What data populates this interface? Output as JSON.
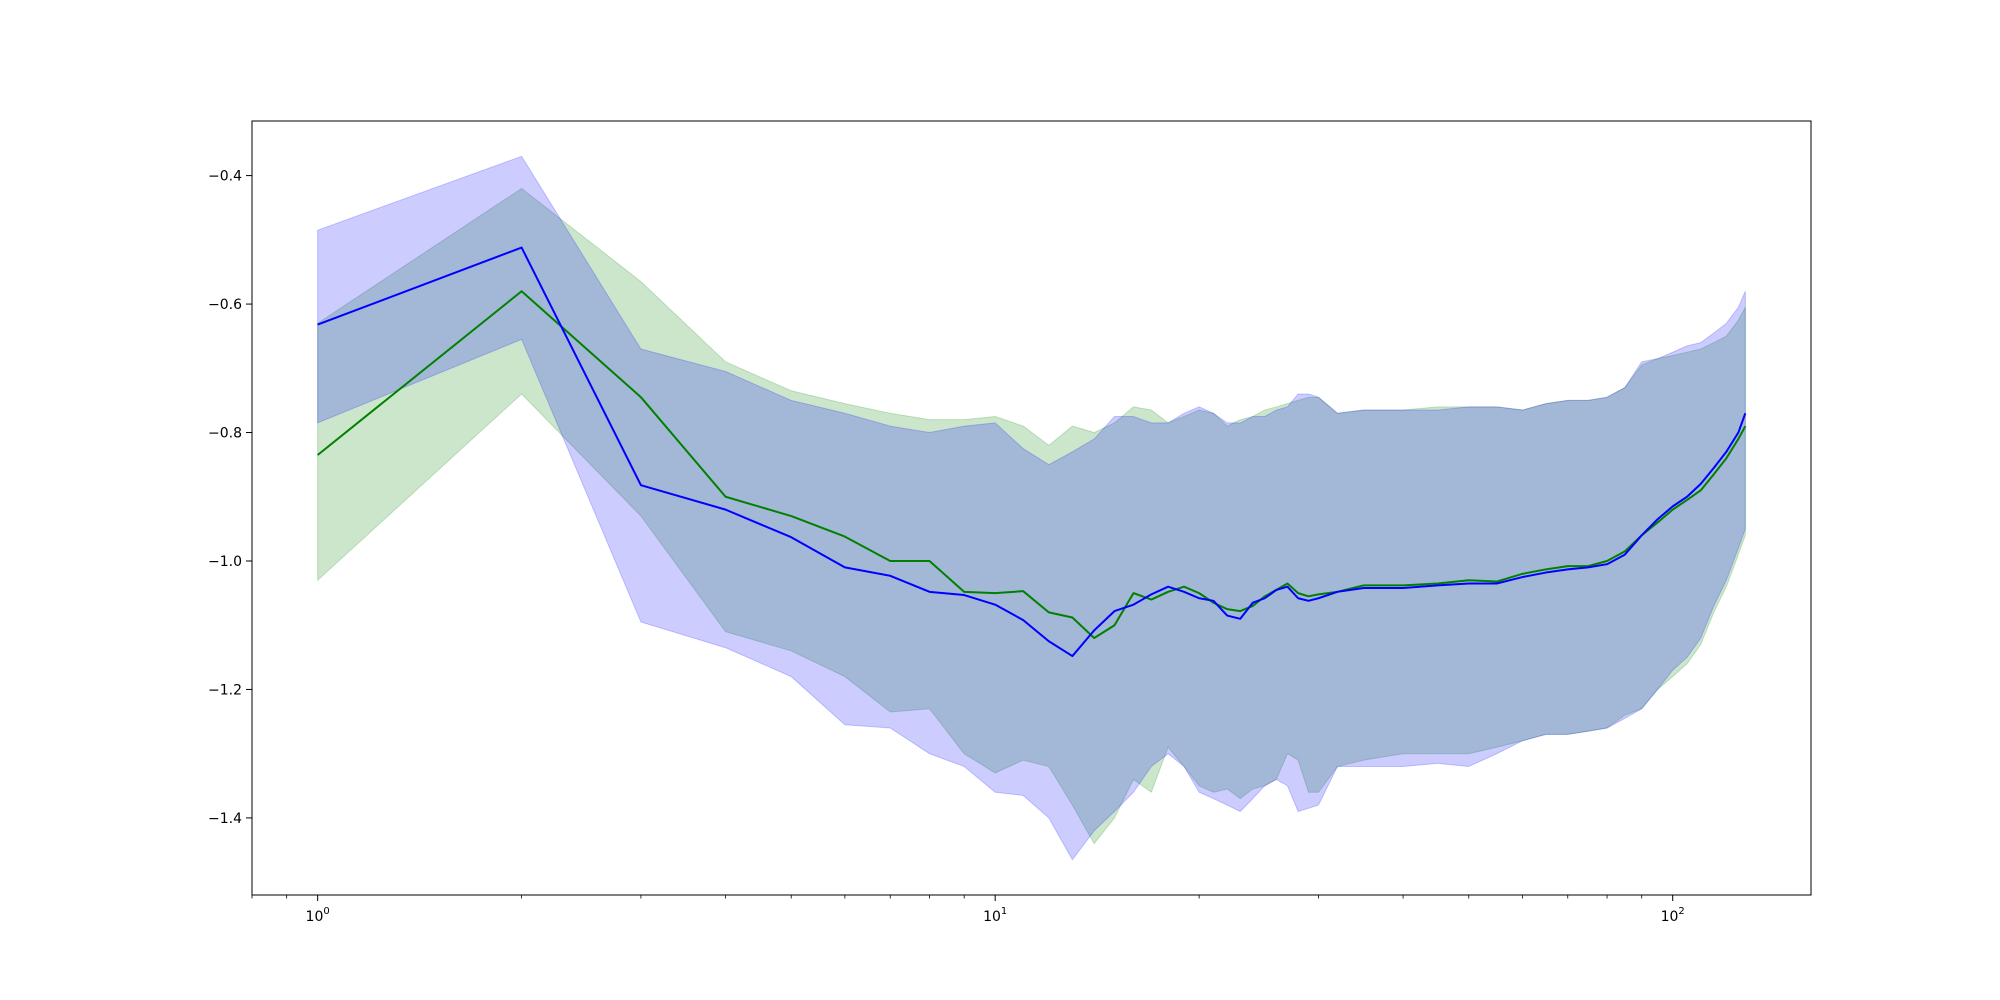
{
  "chart_data": {
    "type": "line",
    "title": "",
    "xlabel": "",
    "ylabel": "",
    "x_scale": "log",
    "xlim": [
      0.8,
      160
    ],
    "ylim": [
      -1.52,
      -0.315
    ],
    "grid": false,
    "legend": "none",
    "x_ticks": [
      {
        "value": 1,
        "base": "10",
        "exp": "0"
      },
      {
        "value": 10,
        "base": "10",
        "exp": "1"
      },
      {
        "value": 100,
        "base": "10",
        "exp": "2"
      }
    ],
    "y_ticks": [
      {
        "value": -0.4,
        "label": "−0.4"
      },
      {
        "value": -0.6,
        "label": "−0.6"
      },
      {
        "value": -0.8,
        "label": "−0.8"
      },
      {
        "value": -1.0,
        "label": "−1.0"
      },
      {
        "value": -1.2,
        "label": "−1.2"
      },
      {
        "value": -1.4,
        "label": "−1.4"
      }
    ],
    "series": [
      {
        "color": "#008000",
        "band_color": "#008000",
        "x": [
          1,
          2,
          3,
          4,
          5,
          6,
          7,
          8,
          9,
          10,
          11,
          12,
          13,
          14,
          15,
          16,
          17,
          18,
          19,
          20,
          21,
          22,
          23,
          24,
          25,
          26,
          27,
          28,
          29,
          30,
          32,
          35,
          40,
          45,
          50,
          55,
          60,
          65,
          70,
          75,
          80,
          85,
          90,
          95,
          100,
          105,
          110,
          115,
          120,
          125,
          128
        ],
        "y": [
          -0.835,
          -0.58,
          -0.745,
          -0.9,
          -0.93,
          -0.962,
          -1.0,
          -1.0,
          -1.048,
          -1.05,
          -1.047,
          -1.08,
          -1.088,
          -1.12,
          -1.1,
          -1.05,
          -1.06,
          -1.048,
          -1.04,
          -1.05,
          -1.065,
          -1.075,
          -1.078,
          -1.07,
          -1.055,
          -1.045,
          -1.035,
          -1.05,
          -1.055,
          -1.052,
          -1.048,
          -1.038,
          -1.038,
          -1.035,
          -1.03,
          -1.032,
          -1.02,
          -1.013,
          -1.008,
          -1.008,
          -1.0,
          -0.985,
          -0.96,
          -0.94,
          -0.92,
          -0.905,
          -0.89,
          -0.865,
          -0.84,
          -0.81,
          -0.79
        ],
        "upper": [
          -0.63,
          -0.42,
          -0.565,
          -0.69,
          -0.735,
          -0.755,
          -0.77,
          -0.78,
          -0.78,
          -0.775,
          -0.79,
          -0.82,
          -0.79,
          -0.8,
          -0.785,
          -0.76,
          -0.765,
          -0.785,
          -0.775,
          -0.765,
          -0.77,
          -0.79,
          -0.78,
          -0.775,
          -0.765,
          -0.76,
          -0.755,
          -0.75,
          -0.745,
          -0.745,
          -0.77,
          -0.765,
          -0.765,
          -0.76,
          -0.76,
          -0.76,
          -0.765,
          -0.755,
          -0.75,
          -0.75,
          -0.745,
          -0.73,
          -0.695,
          -0.685,
          -0.68,
          -0.675,
          -0.67,
          -0.66,
          -0.65,
          -0.625,
          -0.605
        ],
        "lower": [
          -1.03,
          -0.74,
          -0.93,
          -1.11,
          -1.14,
          -1.18,
          -1.235,
          -1.23,
          -1.3,
          -1.33,
          -1.31,
          -1.32,
          -1.38,
          -1.44,
          -1.4,
          -1.34,
          -1.36,
          -1.29,
          -1.32,
          -1.35,
          -1.36,
          -1.355,
          -1.37,
          -1.355,
          -1.35,
          -1.34,
          -1.3,
          -1.31,
          -1.36,
          -1.36,
          -1.32,
          -1.31,
          -1.3,
          -1.3,
          -1.3,
          -1.29,
          -1.28,
          -1.27,
          -1.27,
          -1.265,
          -1.26,
          -1.24,
          -1.23,
          -1.2,
          -1.18,
          -1.16,
          -1.13,
          -1.08,
          -1.04,
          -0.99,
          -0.96
        ]
      },
      {
        "color": "#0000ff",
        "band_color": "#0000ff",
        "x": [
          1,
          2,
          3,
          4,
          5,
          6,
          7,
          8,
          9,
          10,
          11,
          12,
          13,
          14,
          15,
          16,
          17,
          18,
          19,
          20,
          21,
          22,
          23,
          24,
          25,
          26,
          27,
          28,
          29,
          30,
          32,
          35,
          40,
          45,
          50,
          55,
          60,
          65,
          70,
          75,
          80,
          85,
          90,
          95,
          100,
          105,
          110,
          115,
          120,
          125,
          128
        ],
        "y": [
          -0.632,
          -0.512,
          -0.882,
          -0.92,
          -0.963,
          -1.01,
          -1.023,
          -1.048,
          -1.053,
          -1.068,
          -1.092,
          -1.125,
          -1.148,
          -1.108,
          -1.078,
          -1.068,
          -1.052,
          -1.04,
          -1.048,
          -1.058,
          -1.062,
          -1.085,
          -1.09,
          -1.065,
          -1.058,
          -1.045,
          -1.04,
          -1.058,
          -1.062,
          -1.058,
          -1.048,
          -1.042,
          -1.042,
          -1.038,
          -1.035,
          -1.035,
          -1.025,
          -1.018,
          -1.013,
          -1.01,
          -1.005,
          -0.99,
          -0.96,
          -0.935,
          -0.915,
          -0.9,
          -0.88,
          -0.855,
          -0.83,
          -0.8,
          -0.77
        ],
        "upper": [
          -0.485,
          -0.37,
          -0.67,
          -0.705,
          -0.75,
          -0.77,
          -0.79,
          -0.8,
          -0.79,
          -0.785,
          -0.825,
          -0.85,
          -0.83,
          -0.81,
          -0.775,
          -0.775,
          -0.785,
          -0.785,
          -0.77,
          -0.76,
          -0.77,
          -0.785,
          -0.785,
          -0.775,
          -0.775,
          -0.765,
          -0.76,
          -0.74,
          -0.74,
          -0.745,
          -0.77,
          -0.765,
          -0.765,
          -0.765,
          -0.76,
          -0.76,
          -0.765,
          -0.755,
          -0.75,
          -0.75,
          -0.745,
          -0.73,
          -0.69,
          -0.685,
          -0.675,
          -0.665,
          -0.66,
          -0.645,
          -0.63,
          -0.605,
          -0.58
        ],
        "lower": [
          -0.785,
          -0.655,
          -1.095,
          -1.135,
          -1.18,
          -1.255,
          -1.26,
          -1.3,
          -1.32,
          -1.36,
          -1.365,
          -1.4,
          -1.465,
          -1.42,
          -1.39,
          -1.36,
          -1.32,
          -1.3,
          -1.32,
          -1.36,
          -1.37,
          -1.38,
          -1.39,
          -1.37,
          -1.35,
          -1.34,
          -1.35,
          -1.39,
          -1.385,
          -1.38,
          -1.32,
          -1.32,
          -1.32,
          -1.315,
          -1.32,
          -1.3,
          -1.28,
          -1.27,
          -1.27,
          -1.265,
          -1.26,
          -1.245,
          -1.23,
          -1.2,
          -1.17,
          -1.15,
          -1.12,
          -1.07,
          -1.03,
          -0.98,
          -0.95
        ]
      }
    ]
  }
}
